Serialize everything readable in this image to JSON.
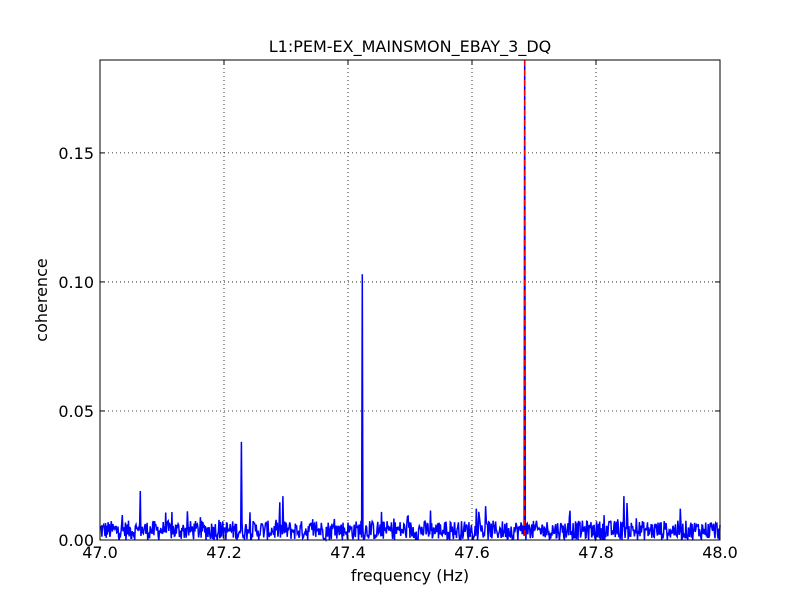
{
  "chart_data": {
    "type": "line",
    "title": "L1:PEM-EX_MAINSMON_EBAY_3_DQ",
    "xlabel": "frequency (Hz)",
    "ylabel": "coherence",
    "xlim": [
      47.0,
      48.0
    ],
    "ylim": [
      0.0,
      0.186
    ],
    "x_ticks": [
      47.0,
      47.2,
      47.4,
      47.6,
      47.8,
      48.0
    ],
    "x_tick_labels": [
      "47.0",
      "47.2",
      "47.4",
      "47.6",
      "47.8",
      "48.0"
    ],
    "y_ticks": [
      0.0,
      0.05,
      0.1,
      0.15
    ],
    "y_tick_labels": [
      "0.00",
      "0.05",
      "0.10",
      "0.15"
    ],
    "grid": true,
    "grid_style": "dotted",
    "series": [
      {
        "color": "#0000ff",
        "noise_floor": "approx 0.000–0.010 with sporadic spikes up to ~0.019",
        "peaks": [
          {
            "x": 47.065,
            "y": 0.019
          },
          {
            "x": 47.228,
            "y": 0.038
          },
          {
            "x": 47.295,
            "y": 0.017
          },
          {
            "x": 47.423,
            "y": 0.103
          },
          {
            "x": 47.685,
            "y": 0.186
          },
          {
            "x": 47.845,
            "y": 0.017
          }
        ]
      }
    ],
    "markers": [
      {
        "type": "vline",
        "x": 47.685,
        "color": "#ff0000",
        "style": "dashed"
      }
    ]
  }
}
